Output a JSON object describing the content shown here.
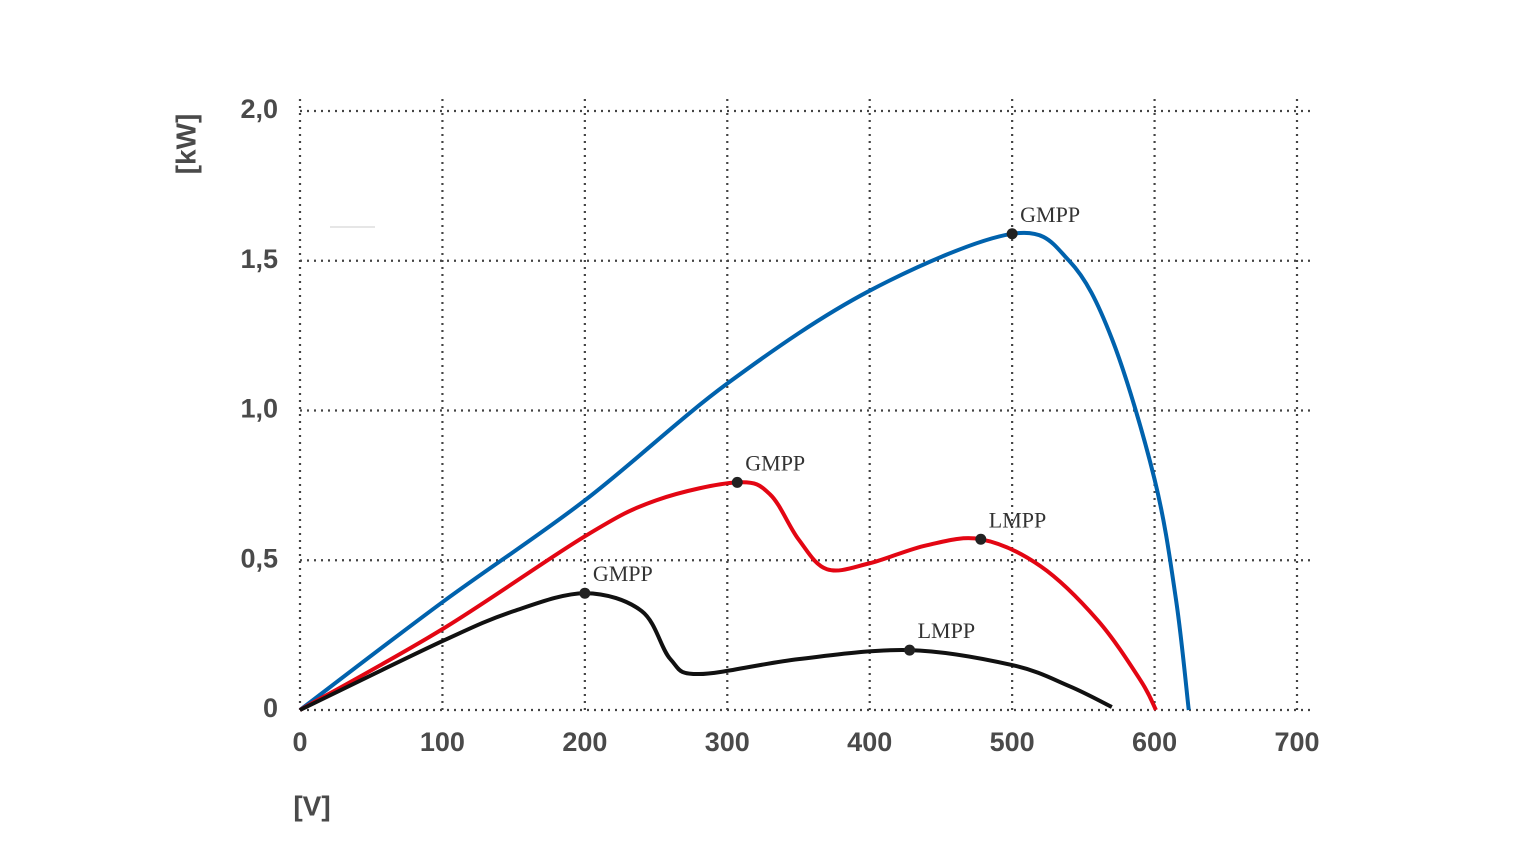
{
  "chart_data": {
    "type": "line",
    "x_label": "[V]",
    "y_label": "[kW]",
    "xlim": [
      0,
      700
    ],
    "ylim": [
      0,
      2
    ],
    "xticks": [
      0,
      100,
      200,
      300,
      400,
      500,
      600,
      700
    ],
    "yticks": [
      0,
      {
        "value": 0.5,
        "label": "0,5"
      },
      {
        "value": 1,
        "label": "1,0"
      },
      {
        "value": 1.5,
        "label": "1,5"
      },
      {
        "value": 2,
        "label": "2,0"
      }
    ],
    "grid": true,
    "series": [
      {
        "color": "#0062ad",
        "x": [
          0,
          100,
          200,
          300,
          400,
          500,
          540,
          570,
          600,
          615,
          624
        ],
        "values": [
          0,
          0.36,
          0.7,
          1.09,
          1.4,
          1.59,
          1.5,
          1.24,
          0.77,
          0.37,
          0
        ]
      },
      {
        "color": "#e30613",
        "x": [
          0,
          100,
          200,
          250,
          307,
          330,
          350,
          370,
          400,
          440,
          478,
          520,
          560,
          590,
          601
        ],
        "values": [
          0,
          0.27,
          0.58,
          0.7,
          0.76,
          0.72,
          0.57,
          0.47,
          0.49,
          0.55,
          0.57,
          0.48,
          0.3,
          0.1,
          0
        ]
      },
      {
        "color": "#111111",
        "x": [
          0,
          100,
          150,
          200,
          240,
          260,
          280,
          350,
          428,
          500,
          540,
          570
        ],
        "values": [
          0,
          0.23,
          0.33,
          0.39,
          0.33,
          0.17,
          0.12,
          0.17,
          0.2,
          0.15,
          0.08,
          0.01
        ]
      }
    ],
    "annotations": [
      {
        "text": "GMPP",
        "x": 500,
        "y": 1.59
      },
      {
        "text": "GMPP",
        "x": 307,
        "y": 0.76
      },
      {
        "text": "LMPP",
        "x": 478,
        "y": 0.57
      },
      {
        "text": "GMPP",
        "x": 200,
        "y": 0.39
      },
      {
        "text": "LMPP",
        "x": 428,
        "y": 0.2
      }
    ]
  }
}
